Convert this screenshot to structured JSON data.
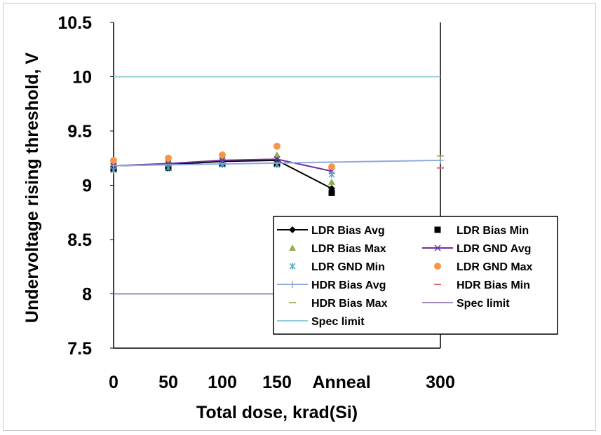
{
  "chart_data": {
    "type": "line",
    "xlabel": "Total dose, krad(Si)",
    "ylabel": "Undervoltage rising threshold, V",
    "ylim": [
      7.5,
      10.5
    ],
    "yticks": [
      "7.5",
      "8",
      "8.5",
      "9",
      "9.5",
      "10",
      "10.5"
    ],
    "x_categories": [
      "0",
      "50",
      "100",
      "150",
      "Anneal",
      "300"
    ],
    "grid": false,
    "legend_position": "bottom-right",
    "series": [
      {
        "name": "LDR Bias Avg",
        "style": "line-diamond",
        "color": "#000000",
        "x": [
          "0",
          "50",
          "100",
          "150",
          "Anneal"
        ],
        "values": [
          9.18,
          9.19,
          9.22,
          9.23,
          8.97
        ]
      },
      {
        "name": "LDR Bias Min",
        "style": "square",
        "color": "#000000",
        "x": [
          "0",
          "50",
          "100",
          "150",
          "Anneal"
        ],
        "values": [
          9.15,
          9.16,
          9.2,
          9.2,
          8.93
        ]
      },
      {
        "name": "LDR Bias Max",
        "style": "triangle",
        "color": "#8db04a",
        "x": [
          "0",
          "50",
          "100",
          "150",
          "Anneal"
        ],
        "values": [
          9.22,
          9.23,
          9.26,
          9.28,
          9.03
        ]
      },
      {
        "name": "LDR GND Avg",
        "style": "line-x",
        "color": "#7030a0",
        "x": [
          "0",
          "50",
          "100",
          "150",
          "Anneal"
        ],
        "values": [
          9.18,
          9.2,
          9.23,
          9.24,
          9.13
        ]
      },
      {
        "name": "LDR GND Min",
        "style": "star",
        "color": "#4bacc6",
        "x": [
          "0",
          "50",
          "100",
          "150",
          "Anneal"
        ],
        "values": [
          9.14,
          9.16,
          9.19,
          9.19,
          9.1
        ]
      },
      {
        "name": "LDR GND Max",
        "style": "circle",
        "color": "#f79646",
        "x": [
          "0",
          "50",
          "100",
          "150",
          "Anneal"
        ],
        "values": [
          9.23,
          9.25,
          9.28,
          9.36,
          9.17
        ]
      },
      {
        "name": "HDR Bias Avg",
        "style": "line-plus",
        "color": "#8ea9db",
        "x": [
          "0",
          "300"
        ],
        "values": [
          9.18,
          9.23
        ]
      },
      {
        "name": "HDR Bias Min",
        "style": "dash",
        "color": "#e06666",
        "x": [
          "300"
        ],
        "values": [
          9.16
        ]
      },
      {
        "name": "HDR Bias Max",
        "style": "dash",
        "color": "#9bbb59",
        "x": [
          "300"
        ],
        "values": [
          9.27
        ]
      },
      {
        "name": "Spec limit",
        "style": "hline",
        "color": "#a58bb8",
        "x": [
          "0",
          "Anneal"
        ],
        "values": [
          8.0,
          8.0
        ]
      },
      {
        "name": "Spec limit",
        "style": "hline",
        "color": "#92cddc",
        "x": [
          "0",
          "300"
        ],
        "values": [
          10.0,
          10.0
        ]
      }
    ]
  }
}
